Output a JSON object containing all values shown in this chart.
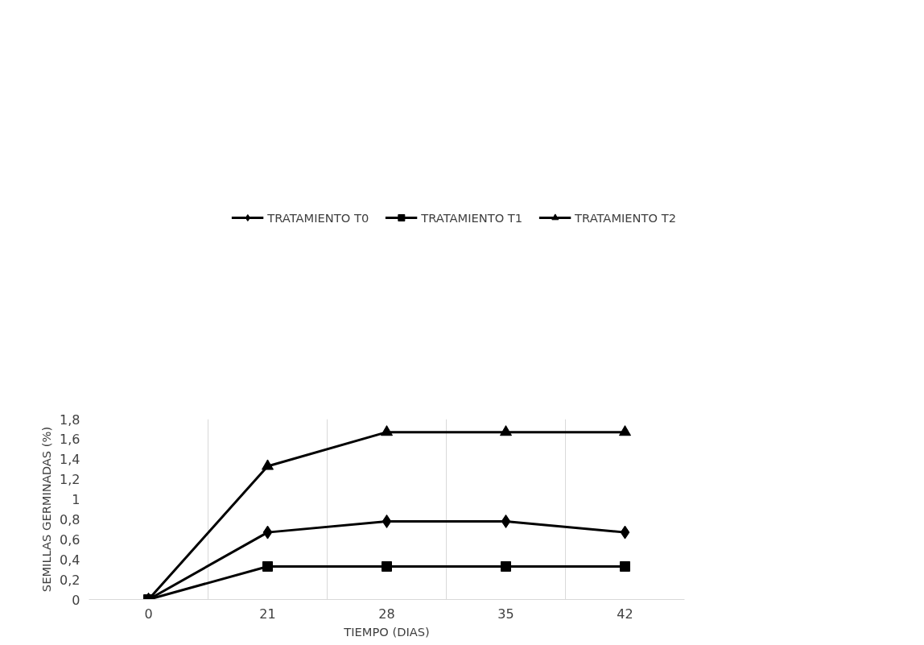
{
  "chart_data": {
    "type": "line",
    "xlabel": "TIEMPO (DIAS)",
    "ylabel": "SEMILLAS GERMINADAS (%)",
    "categories": [
      "0",
      "21",
      "28",
      "35",
      "42"
    ],
    "series": [
      {
        "name": "TRATAMIENTO T0",
        "color": "#000000",
        "marker": "diamond",
        "values": [
          0,
          0.67,
          0.78,
          0.78,
          0.67
        ]
      },
      {
        "name": "TRATAMIENTO T1",
        "color": "#000000",
        "marker": "square",
        "values": [
          0,
          0.33,
          0.33,
          0.33,
          0.33
        ]
      },
      {
        "name": "TRATAMIENTO T2",
        "color": "#000000",
        "marker": "triangle",
        "values": [
          0,
          1.33,
          1.67,
          1.67,
          1.67
        ]
      }
    ],
    "ylim": [
      0,
      1.8
    ],
    "yticks": [
      0,
      {
        "value": 0.2,
        "label": "0,2"
      },
      {
        "value": 0.4,
        "label": "0,4"
      },
      {
        "value": 0.6,
        "label": "0,6"
      },
      {
        "value": 0.8,
        "label": "0,8"
      },
      1,
      {
        "value": 1.2,
        "label": "1,2"
      },
      {
        "value": 1.4,
        "label": "1,4"
      },
      {
        "value": 1.6,
        "label": "1,6"
      },
      {
        "value": 1.8,
        "label": "1,8"
      }
    ],
    "grid": "x",
    "legend": "top",
    "line_style": "solid"
  }
}
